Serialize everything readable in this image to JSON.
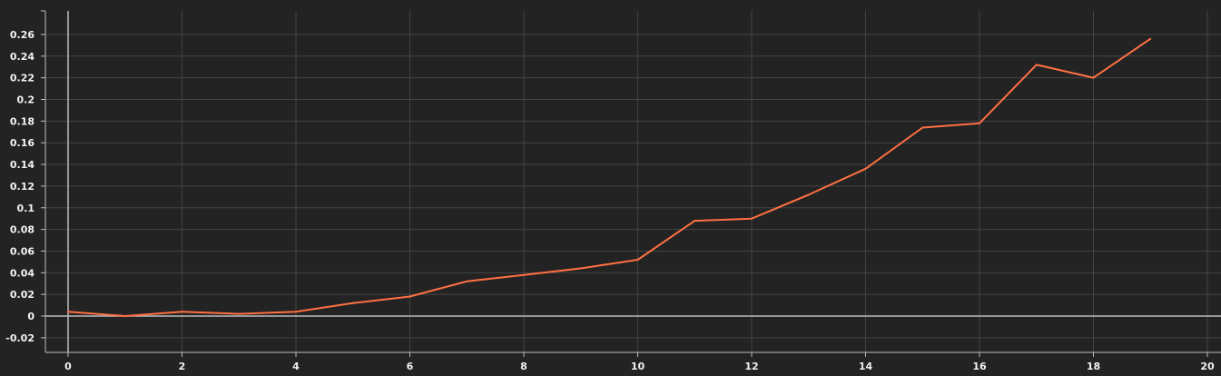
{
  "chart_data": {
    "type": "line",
    "title": "",
    "xlabel": "",
    "ylabel": "",
    "xlim": [
      0,
      20
    ],
    "ylim": [
      -0.02,
      0.26
    ],
    "x_ticks": [
      "0",
      "2",
      "4",
      "6",
      "8",
      "10",
      "12",
      "14",
      "16",
      "18",
      "20"
    ],
    "y_ticks": [
      "-0.02",
      "0",
      "0.02",
      "0.04",
      "0.06",
      "0.08",
      "0.1",
      "0.12",
      "0.14",
      "0.16",
      "0.18",
      "0.2",
      "0.22",
      "0.24",
      "0.26"
    ],
    "grid": true,
    "legend": "none",
    "series": [
      {
        "color": "#ff7043",
        "x": [
          0,
          1,
          2,
          3,
          4,
          5,
          6,
          7,
          8,
          9,
          10,
          11,
          12,
          13,
          14,
          15,
          16,
          17,
          18,
          19
        ],
        "y": [
          0.004,
          0.0,
          0.004,
          0.002,
          0.004,
          0.012,
          0.018,
          0.032,
          0.038,
          0.044,
          0.052,
          0.088,
          0.09,
          0.112,
          0.136,
          0.174,
          0.178,
          0.232,
          0.22,
          0.256
        ]
      }
    ]
  },
  "colors": {
    "background": "#232323",
    "grid": "#444444",
    "axis": "#bdbdbd",
    "tick_text": "#f2f2f2"
  }
}
